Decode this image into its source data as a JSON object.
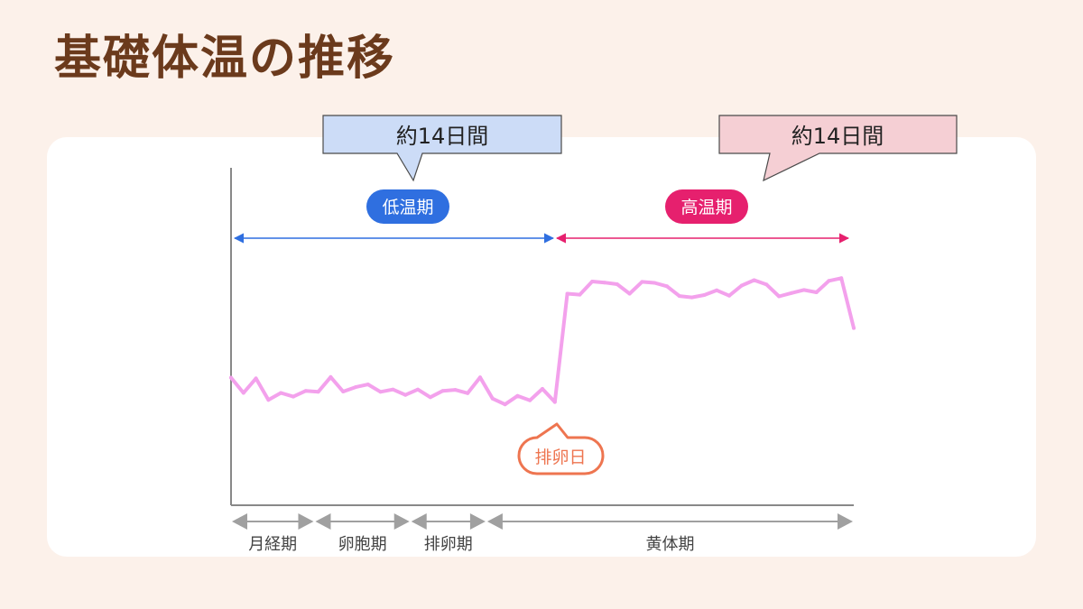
{
  "page": {
    "title": "基礎体温の推移",
    "colors": {
      "title": "#6b3a1c",
      "background": "#fcf1ea",
      "card": "#ffffff",
      "low_phase": "#2f6fe0",
      "high_phase": "#e6206e",
      "temperature_line": "#f3a1ec",
      "ovulation_marker": "#ee7550",
      "phase_bar": "#a0a0a0"
    }
  },
  "callouts": {
    "left": {
      "text": "約14日間",
      "fill": "#ccdcf7"
    },
    "right": {
      "text": "約14日間",
      "fill": "#f5cfd4"
    }
  },
  "phases_top": {
    "low": {
      "label": "低温期",
      "color": "#2f6fe0"
    },
    "high": {
      "label": "高温期",
      "color": "#e6206e"
    }
  },
  "ovulation_marker": {
    "label": "排卵日"
  },
  "chart_data": {
    "type": "line",
    "title": "基礎体温の推移",
    "xlabel": "",
    "ylabel": "",
    "grid": false,
    "y_scale": "relative level (0 = bottom axis, 1 = top of plot); the chart prints no temperature units",
    "series": [
      {
        "values": [
          0.378,
          0.333,
          0.376,
          0.312,
          0.333,
          0.322,
          0.339,
          0.336,
          0.38,
          0.337,
          0.35,
          0.358,
          0.336,
          0.343,
          0.327,
          0.343,
          0.32,
          0.339,
          0.342,
          0.332,
          0.379,
          0.316,
          0.299,
          0.324,
          0.311,
          0.345,
          0.306,
          0.627,
          0.624,
          0.663,
          0.66,
          0.655,
          0.627,
          0.662,
          0.659,
          0.649,
          0.62,
          0.616,
          0.623,
          0.637,
          0.621,
          0.651,
          0.667,
          0.654,
          0.619,
          0.629,
          0.638,
          0.631,
          0.665,
          0.673,
          0.525
        ]
      }
    ],
    "annotations": [
      {
        "text": "排卵日",
        "at_point_index": 26
      }
    ],
    "phase_bands": [
      {
        "label": "月経期",
        "start_index": 0,
        "end_index": 6.7
      },
      {
        "label": "卵胞期",
        "start_index": 6.7,
        "end_index": 14.4
      },
      {
        "label": "排卵期",
        "start_index": 14.4,
        "end_index": 20.5
      },
      {
        "label": "黄体期",
        "start_index": 20.5,
        "end_index": 50
      }
    ]
  }
}
